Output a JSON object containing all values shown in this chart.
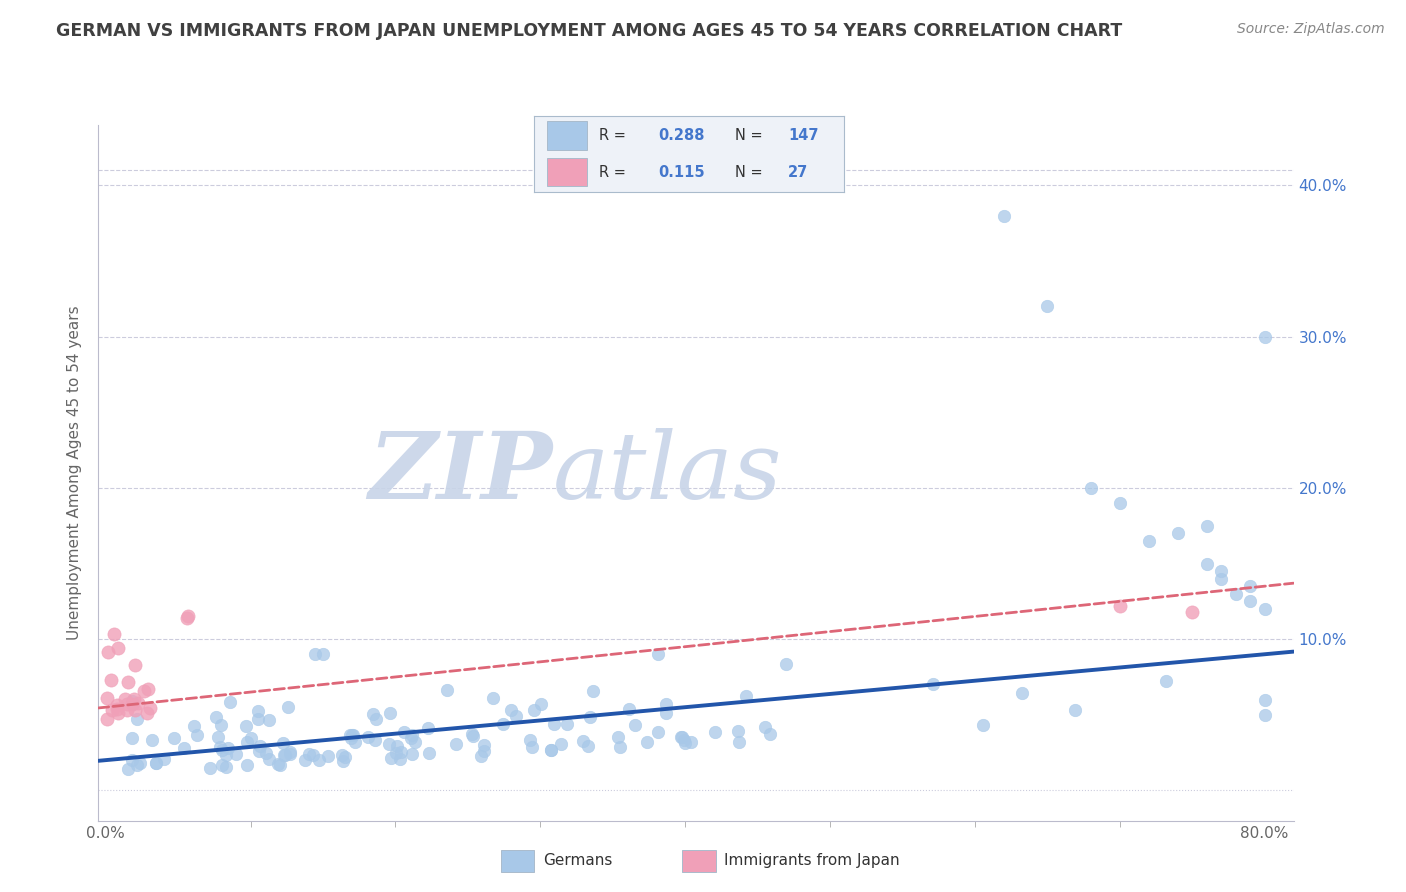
{
  "title": "GERMAN VS IMMIGRANTS FROM JAPAN UNEMPLOYMENT AMONG AGES 45 TO 54 YEARS CORRELATION CHART",
  "source": "Source: ZipAtlas.com",
  "ylabel": "Unemployment Among Ages 45 to 54 years",
  "xlim": [
    -0.005,
    0.82
  ],
  "ylim": [
    -0.02,
    0.44
  ],
  "german_R": 0.288,
  "german_N": 147,
  "japan_R": 0.115,
  "japan_N": 27,
  "german_color": "#a8c8e8",
  "japan_color": "#f0a0b8",
  "german_line_color": "#2255aa",
  "japan_line_color": "#dd6677",
  "watermark_zip_color": "#c8d4e8",
  "watermark_atlas_color": "#c8d4e8",
  "background_color": "#ffffff",
  "grid_color": "#ccccdd",
  "title_color": "#404040",
  "tick_label_color": "#4477cc",
  "axis_label_color": "#666666",
  "legend_box_color": "#eef2f8",
  "legend_border_color": "#aabbcc",
  "yticks": [
    0.0,
    0.1,
    0.2,
    0.3,
    0.4
  ],
  "ytick_labels": [
    "",
    "10.0%",
    "20.0%",
    "30.0%",
    "40.0%"
  ]
}
